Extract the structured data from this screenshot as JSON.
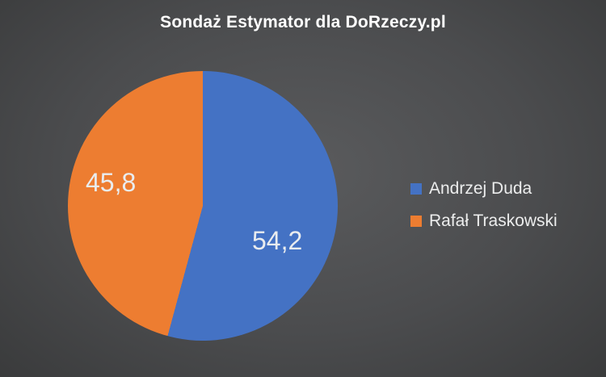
{
  "title": "Sondaż Estymator dla DoRzeczy.pl",
  "chart_data": {
    "type": "pie",
    "title": "Sondaż Estymator dla DoRzeczy.pl",
    "categories": [
      "Andrzej Duda",
      "Rafał Traskowski"
    ],
    "values": [
      54.2,
      45.8
    ],
    "value_labels": [
      "54,2",
      "45,8"
    ],
    "colors": [
      "#4472c4",
      "#ed7d31"
    ],
    "start_angle_deg": 0,
    "direction": "clockwise",
    "legend_position": "right",
    "background": "#4b4c4e",
    "legend": [
      {
        "label": "Andrzej Duda",
        "color": "#4472c4"
      },
      {
        "label": "Rafał Traskowski",
        "color": "#ed7d31"
      }
    ]
  }
}
